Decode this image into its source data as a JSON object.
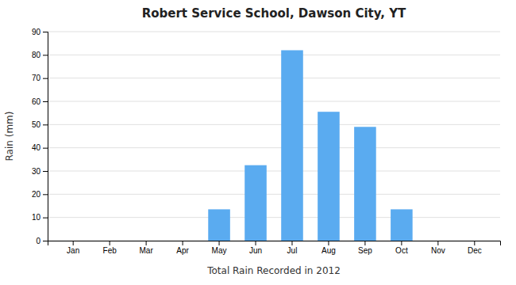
{
  "chart_data": {
    "type": "bar",
    "title": "Robert Service School, Dawson City, YT",
    "xlabel": "Total Rain Recorded in 2012",
    "ylabel": "Rain (mm)",
    "categories": [
      "Jan",
      "Feb",
      "Mar",
      "Apr",
      "May",
      "Jun",
      "Jul",
      "Aug",
      "Sep",
      "Oct",
      "Nov",
      "Dec"
    ],
    "values": [
      0,
      0,
      0,
      0,
      13.5,
      32.5,
      82.0,
      55.5,
      49.0,
      13.5,
      0,
      0
    ],
    "color": "#5aabf0",
    "ylim": [
      0,
      90
    ],
    "yticks": [
      0,
      10,
      20,
      30,
      40,
      50,
      60,
      70,
      80,
      90
    ],
    "grid": true
  }
}
